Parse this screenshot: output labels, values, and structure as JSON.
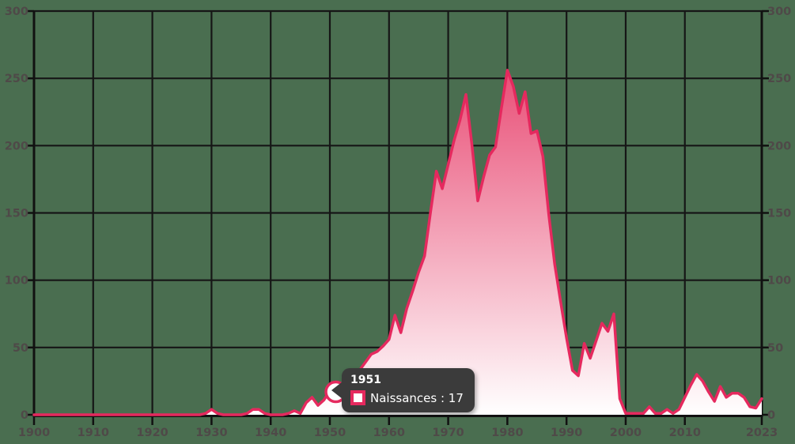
{
  "chart_data": {
    "type": "area",
    "title": "",
    "xlabel": "",
    "ylabel": "",
    "xlim": [
      1900,
      2023
    ],
    "ylim": [
      0,
      300
    ],
    "grid": true,
    "legend_position": "none",
    "x_ticks": [
      {
        "value": 1900,
        "label": "1900"
      },
      {
        "value": 1910,
        "label": "1910"
      },
      {
        "value": 1920,
        "label": "1920"
      },
      {
        "value": 1930,
        "label": "1930"
      },
      {
        "value": 1940,
        "label": "1940"
      },
      {
        "value": 1950,
        "label": "1950"
      },
      {
        "value": 1960,
        "label": "1960"
      },
      {
        "value": 1970,
        "label": "1970"
      },
      {
        "value": 1980,
        "label": "1980"
      },
      {
        "value": 1990,
        "label": "1990"
      },
      {
        "value": 2000,
        "label": "2000"
      },
      {
        "value": 2010,
        "label": "2010"
      },
      {
        "value": 2023,
        "label": "2023"
      }
    ],
    "y_ticks": [
      {
        "value": 0,
        "label": "0"
      },
      {
        "value": 50,
        "label": "50"
      },
      {
        "value": 100,
        "label": "100"
      },
      {
        "value": 150,
        "label": "150"
      },
      {
        "value": 200,
        "label": "200"
      },
      {
        "value": 250,
        "label": "250"
      },
      {
        "value": 300,
        "label": "300"
      }
    ],
    "series": [
      {
        "name": "Naissances",
        "year_start": 1900,
        "x_interval": 1,
        "values": [
          0,
          0,
          0,
          0,
          0,
          0,
          0,
          0,
          0,
          0,
          0,
          0,
          0,
          0,
          0,
          0,
          0,
          0,
          0,
          0,
          0,
          0,
          0,
          0,
          0,
          0,
          0,
          0,
          0,
          1,
          4,
          1,
          0,
          0,
          0,
          0,
          1,
          4,
          4,
          1,
          0,
          0,
          0,
          1,
          3,
          1,
          9,
          13,
          7,
          11,
          18,
          17,
          19,
          23,
          28,
          33,
          39,
          45,
          47,
          51,
          56,
          74,
          61,
          79,
          92,
          106,
          118,
          150,
          181,
          168,
          186,
          204,
          219,
          238,
          201,
          159,
          177,
          193,
          199,
          228,
          256,
          244,
          224,
          240,
          209,
          211,
          192,
          149,
          112,
          84,
          57,
          33,
          29,
          53,
          42,
          55,
          68,
          62,
          75,
          12,
          1,
          1,
          1,
          1,
          6,
          1,
          1,
          4,
          1,
          4,
          13,
          22,
          30,
          25,
          17,
          10,
          21,
          13,
          16,
          16,
          13,
          6,
          5,
          12
        ]
      }
    ],
    "hover_point": {
      "year": 1951,
      "value": 17
    }
  },
  "tooltip": {
    "year": "1951",
    "series": "Naissances",
    "value": "17",
    "label": "Naissances : 17"
  },
  "colors": {
    "background": "#4a6e50",
    "grid": "#161616",
    "axis": "#111111",
    "line": "#e5295e",
    "area_top": "#e5305f",
    "area_bottom": "#ffffff",
    "axis_label": "#4f4948",
    "tooltip_bg": "#3b3b3b",
    "tooltip_text": "#ffffff",
    "marker_fill": "#ffffff"
  }
}
